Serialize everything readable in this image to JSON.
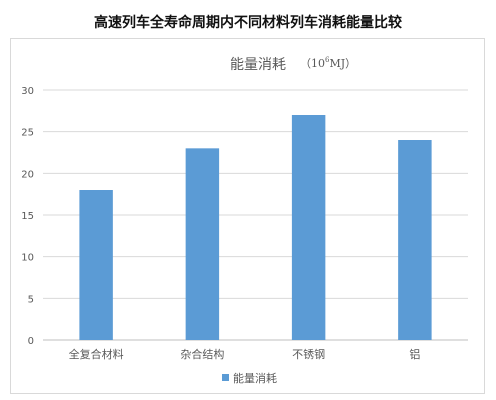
{
  "page": {
    "title": "高速列车全寿命周期内不同材料列车消耗能量比较"
  },
  "chart_data": {
    "type": "bar",
    "title": "能量消耗",
    "unit_prefix": "（10",
    "unit_exp": "6",
    "unit_suffix": "MJ）",
    "categories": [
      "全复合材料",
      "杂合结构",
      "不锈钢",
      "铝"
    ],
    "series": [
      {
        "name": "能量消耗",
        "values": [
          18,
          23,
          27,
          24
        ]
      }
    ],
    "yticks": [
      0,
      5,
      10,
      15,
      20,
      25,
      30
    ],
    "ylim": [
      0,
      30
    ],
    "grid": true,
    "legend_position": "bottom",
    "colors": {
      "bar": "#5b9bd5",
      "grid": "#d9d9d9",
      "axis": "#bfbfbf",
      "tick_text": "#595959"
    }
  }
}
